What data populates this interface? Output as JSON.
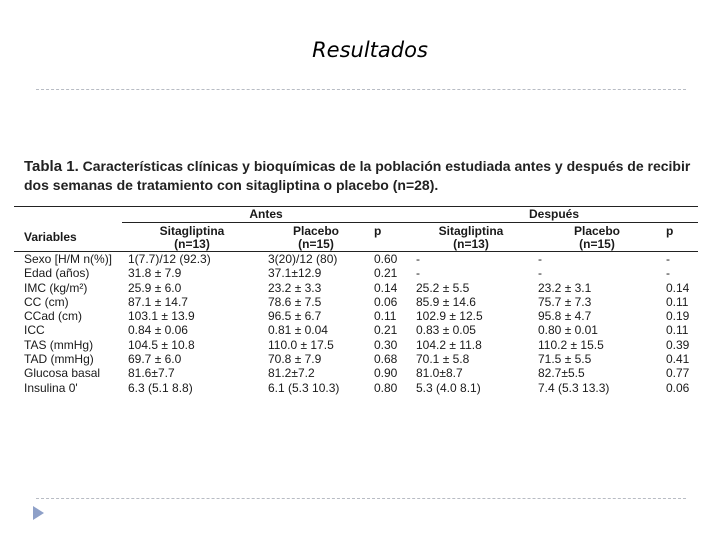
{
  "slide": {
    "title": "Resultados"
  },
  "caption": {
    "lead": "Tabla 1.",
    "text": " Características clínicas y bioquímicas de la población estudiada antes y después de recibir dos semanas de tratamiento con sitagliptina o placebo (n=28)."
  },
  "table": {
    "group_before": "Antes",
    "group_after": "Después",
    "col_variables": "Variables",
    "col_sita": "Sitagliptina",
    "col_sita_n": "(n=13)",
    "col_placebo": "Placebo",
    "col_placebo_n": "(n=15)",
    "col_p": "p",
    "rows": [
      {
        "var": "Sexo [H/M n(%)]",
        "s1": "1(7.7)/12 (92.3)",
        "p1": "3(20)/12 (80)",
        "pv1": "0.60",
        "s2": "-",
        "p2": "-",
        "pv2": "-"
      },
      {
        "var": "Edad (años)",
        "s1": "31.8 ± 7.9",
        "p1": "37.1±12.9",
        "pv1": "0.21",
        "s2": "-",
        "p2": "-",
        "pv2": "-"
      },
      {
        "var": "IMC (kg/m²)",
        "s1": "25.9 ± 6.0",
        "p1": "23.2 ± 3.3",
        "pv1": "0.14",
        "s2": "25.2 ± 5.5",
        "p2": "23.2 ± 3.1",
        "pv2": "0.14"
      },
      {
        "var": "CC (cm)",
        "s1": "87.1 ± 14.7",
        "p1": "78.6 ± 7.5",
        "pv1": "0.06",
        "s2": "85.9 ± 14.6",
        "p2": "75.7 ± 7.3",
        "pv2": "0.11"
      },
      {
        "var": "CCad (cm)",
        "s1": "103.1 ± 13.9",
        "p1": "96.5 ± 6.7",
        "pv1": "0.11",
        "s2": "102.9 ± 12.5",
        "p2": "95.8 ± 4.7",
        "pv2": "0.19"
      },
      {
        "var": "ICC",
        "s1": "0.84 ± 0.06",
        "p1": "0.81 ± 0.04",
        "pv1": "0.21",
        "s2": "0.83 ± 0.05",
        "p2": "0.80 ± 0.01",
        "pv2": "0.11"
      },
      {
        "var": "TAS (mmHg)",
        "s1": "104.5 ± 10.8",
        "p1": "110.0 ± 17.5",
        "pv1": "0.30",
        "s2": "104.2 ± 11.8",
        "p2": "110.2 ± 15.5",
        "pv2": "0.39"
      },
      {
        "var": "TAD (mmHg)",
        "s1": "69.7 ± 6.0",
        "p1": "70.8 ± 7.9",
        "pv1": "0.68",
        "s2": "70.1 ± 5.8",
        "p2": "71.5 ± 5.5",
        "pv2": "0.41"
      },
      {
        "var": "Glucosa basal",
        "s1": "81.6±7.7",
        "p1": "81.2±7.2",
        "pv1": "0.90",
        "s2": "81.0±8.7",
        "p2": "82.7±5.5",
        "pv2": "0.77"
      },
      {
        "var": "Insulina 0'",
        "s1": "6.3 (5.1 8.8)",
        "p1": "6.1 (5.3 10.3)",
        "pv1": "0.80",
        "s2": "5.3 (4.0 8.1)",
        "p2": "7.4 (5.3 13.3)",
        "pv2": "0.06"
      }
    ]
  }
}
